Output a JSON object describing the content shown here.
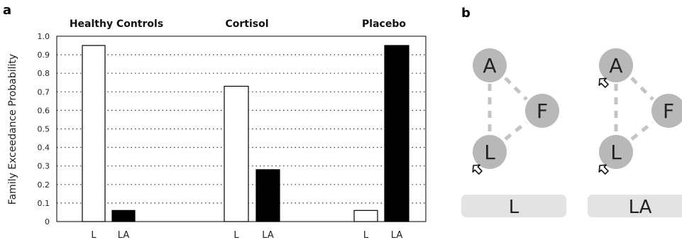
{
  "panel_a_label": "a",
  "panel_b_label": "b",
  "chart_data": {
    "type": "bar",
    "ylabel": "Family Exceedance Probability",
    "ylim": [
      0,
      1.0
    ],
    "yticks": [
      "0",
      "0.1",
      "0.2",
      "0.3",
      "0.4",
      "0.5",
      "0.6",
      "0.7",
      "0.8",
      "0.9",
      "1.0"
    ],
    "grid": "horizontal dotted",
    "groups": [
      {
        "title": "Healthy Controls",
        "bars": [
          {
            "label": "L",
            "value": 0.95,
            "color": "#ffffff"
          },
          {
            "label": "LA",
            "value": 0.06,
            "color": "#000000"
          }
        ]
      },
      {
        "title": "Cortisol",
        "bars": [
          {
            "label": "L",
            "value": 0.73,
            "color": "#ffffff"
          },
          {
            "label": "LA",
            "value": 0.28,
            "color": "#000000"
          }
        ]
      },
      {
        "title": "Placebo",
        "bars": [
          {
            "label": "L",
            "value": 0.06,
            "color": "#ffffff"
          },
          {
            "label": "LA",
            "value": 0.95,
            "color": "#000000"
          }
        ]
      }
    ]
  },
  "models": [
    {
      "name": "L",
      "nodes": [
        "A",
        "F",
        "L"
      ],
      "input_arrows_to": [
        "L"
      ]
    },
    {
      "name": "LA",
      "nodes": [
        "A",
        "F",
        "L"
      ],
      "input_arrows_to": [
        "A",
        "L"
      ]
    }
  ],
  "colors": {
    "node": "#b8b8b8",
    "edge": "#c4c4c4",
    "model_box": "#e3e3e3"
  }
}
